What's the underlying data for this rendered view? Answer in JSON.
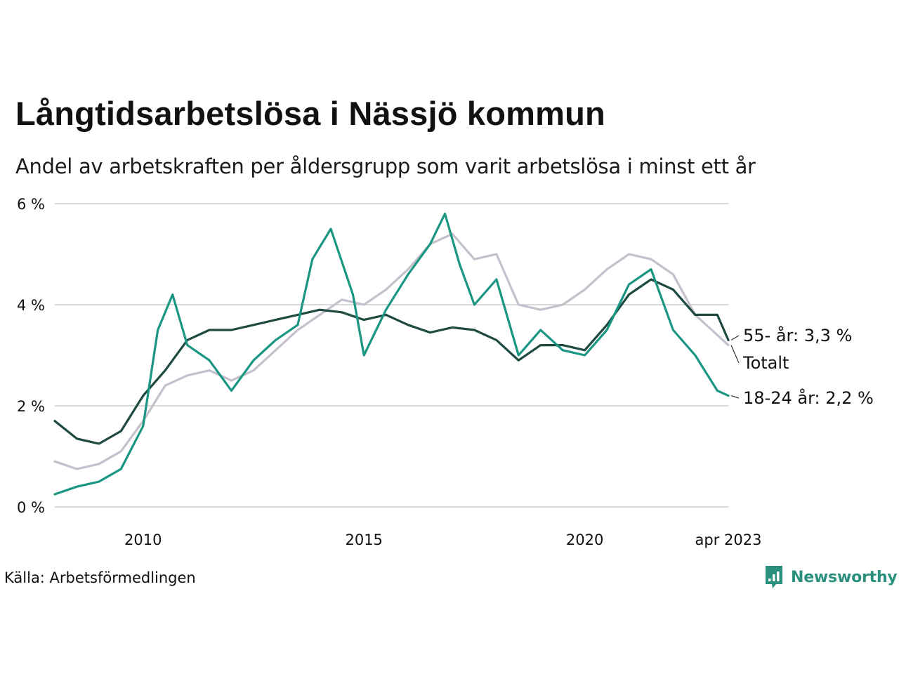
{
  "page": {
    "title": "Långtidsarbetslösa i Nässjö kommun",
    "subtitle": "Andel av arbetskraften per åldersgrupp som varit arbetslösa i minst ett år",
    "source": "Källa: Arbetsförmedlingen",
    "brand": "Newsworthy"
  },
  "colors": {
    "total": "#c4c0cc",
    "age_55": "#1e4a42",
    "age_18_24": "#1a9683",
    "grid": "#d9d9d9",
    "text": "#111111",
    "brand": "#2b8f7e"
  },
  "icons": {
    "brand": "newsworthy-logo-icon"
  },
  "chart_data": {
    "type": "line",
    "title": "Långtidsarbetslösa i Nässjö kommun",
    "subtitle": "Andel av arbetskraften per åldersgrupp som varit arbetslösa i minst ett år",
    "x_ticks": [
      {
        "date": "2010-01",
        "label": "2010"
      },
      {
        "date": "2015-01",
        "label": "2015"
      },
      {
        "date": "2020-01",
        "label": "2020"
      },
      {
        "date": "2023-04",
        "label": "apr 2023"
      }
    ],
    "y_ticks": [
      {
        "value": 0,
        "label": "0 %"
      },
      {
        "value": 2,
        "label": "2 %"
      },
      {
        "value": 4,
        "label": "4 %"
      },
      {
        "value": 6,
        "label": "6 %"
      }
    ],
    "xlim": [
      "2008-01",
      "2023-04"
    ],
    "ylim": [
      0,
      6
    ],
    "grid": true,
    "legend": "direct labels at line ends",
    "series": [
      {
        "key": "total",
        "end_label": "Totalt",
        "points": [
          [
            "2008-01",
            0.9
          ],
          [
            "2008-07",
            0.75
          ],
          [
            "2009-01",
            0.85
          ],
          [
            "2009-07",
            1.1
          ],
          [
            "2010-01",
            1.7
          ],
          [
            "2010-07",
            2.4
          ],
          [
            "2011-01",
            2.6
          ],
          [
            "2011-07",
            2.7
          ],
          [
            "2012-01",
            2.5
          ],
          [
            "2012-07",
            2.7
          ],
          [
            "2013-01",
            3.1
          ],
          [
            "2013-07",
            3.5
          ],
          [
            "2014-01",
            3.8
          ],
          [
            "2014-07",
            4.1
          ],
          [
            "2015-01",
            4.0
          ],
          [
            "2015-07",
            4.3
          ],
          [
            "2016-01",
            4.7
          ],
          [
            "2016-07",
            5.2
          ],
          [
            "2017-01",
            5.4
          ],
          [
            "2017-07",
            4.9
          ],
          [
            "2018-01",
            5.0
          ],
          [
            "2018-07",
            4.0
          ],
          [
            "2019-01",
            3.9
          ],
          [
            "2019-07",
            4.0
          ],
          [
            "2020-01",
            4.3
          ],
          [
            "2020-07",
            4.7
          ],
          [
            "2021-01",
            5.0
          ],
          [
            "2021-07",
            4.9
          ],
          [
            "2022-01",
            4.6
          ],
          [
            "2022-07",
            3.8
          ],
          [
            "2023-01",
            3.4
          ],
          [
            "2023-04",
            3.2
          ]
        ]
      },
      {
        "key": "age_55",
        "end_label": "55- år: 3,3 %",
        "points": [
          [
            "2008-01",
            1.7
          ],
          [
            "2008-07",
            1.35
          ],
          [
            "2009-01",
            1.25
          ],
          [
            "2009-07",
            1.5
          ],
          [
            "2010-01",
            2.2
          ],
          [
            "2010-07",
            2.7
          ],
          [
            "2011-01",
            3.3
          ],
          [
            "2011-07",
            3.5
          ],
          [
            "2012-01",
            3.5
          ],
          [
            "2012-07",
            3.6
          ],
          [
            "2013-01",
            3.7
          ],
          [
            "2013-07",
            3.8
          ],
          [
            "2014-01",
            3.9
          ],
          [
            "2014-07",
            3.85
          ],
          [
            "2015-01",
            3.7
          ],
          [
            "2015-07",
            3.8
          ],
          [
            "2016-01",
            3.6
          ],
          [
            "2016-07",
            3.45
          ],
          [
            "2017-01",
            3.55
          ],
          [
            "2017-07",
            3.5
          ],
          [
            "2018-01",
            3.3
          ],
          [
            "2018-07",
            2.9
          ],
          [
            "2019-01",
            3.2
          ],
          [
            "2019-07",
            3.2
          ],
          [
            "2020-01",
            3.1
          ],
          [
            "2020-07",
            3.6
          ],
          [
            "2021-01",
            4.2
          ],
          [
            "2021-07",
            4.5
          ],
          [
            "2022-01",
            4.3
          ],
          [
            "2022-07",
            3.8
          ],
          [
            "2023-01",
            3.8
          ],
          [
            "2023-04",
            3.3
          ]
        ]
      },
      {
        "key": "age_18_24",
        "end_label": "18-24 år: 2,2 %",
        "points": [
          [
            "2008-01",
            0.25
          ],
          [
            "2008-07",
            0.4
          ],
          [
            "2009-01",
            0.5
          ],
          [
            "2009-07",
            0.75
          ],
          [
            "2010-01",
            1.6
          ],
          [
            "2010-05",
            3.5
          ],
          [
            "2010-09",
            4.2
          ],
          [
            "2011-01",
            3.2
          ],
          [
            "2011-07",
            2.9
          ],
          [
            "2012-01",
            2.3
          ],
          [
            "2012-07",
            2.9
          ],
          [
            "2013-01",
            3.3
          ],
          [
            "2013-07",
            3.6
          ],
          [
            "2013-11",
            4.9
          ],
          [
            "2014-04",
            5.5
          ],
          [
            "2014-10",
            4.2
          ],
          [
            "2015-01",
            3.0
          ],
          [
            "2015-07",
            3.9
          ],
          [
            "2016-01",
            4.6
          ],
          [
            "2016-07",
            5.2
          ],
          [
            "2016-11",
            5.8
          ],
          [
            "2017-03",
            4.8
          ],
          [
            "2017-07",
            4.0
          ],
          [
            "2018-01",
            4.5
          ],
          [
            "2018-07",
            3.0
          ],
          [
            "2019-01",
            3.5
          ],
          [
            "2019-07",
            3.1
          ],
          [
            "2020-01",
            3.0
          ],
          [
            "2020-07",
            3.5
          ],
          [
            "2021-01",
            4.4
          ],
          [
            "2021-07",
            4.7
          ],
          [
            "2022-01",
            3.5
          ],
          [
            "2022-07",
            3.0
          ],
          [
            "2023-01",
            2.3
          ],
          [
            "2023-04",
            2.2
          ]
        ]
      }
    ]
  }
}
